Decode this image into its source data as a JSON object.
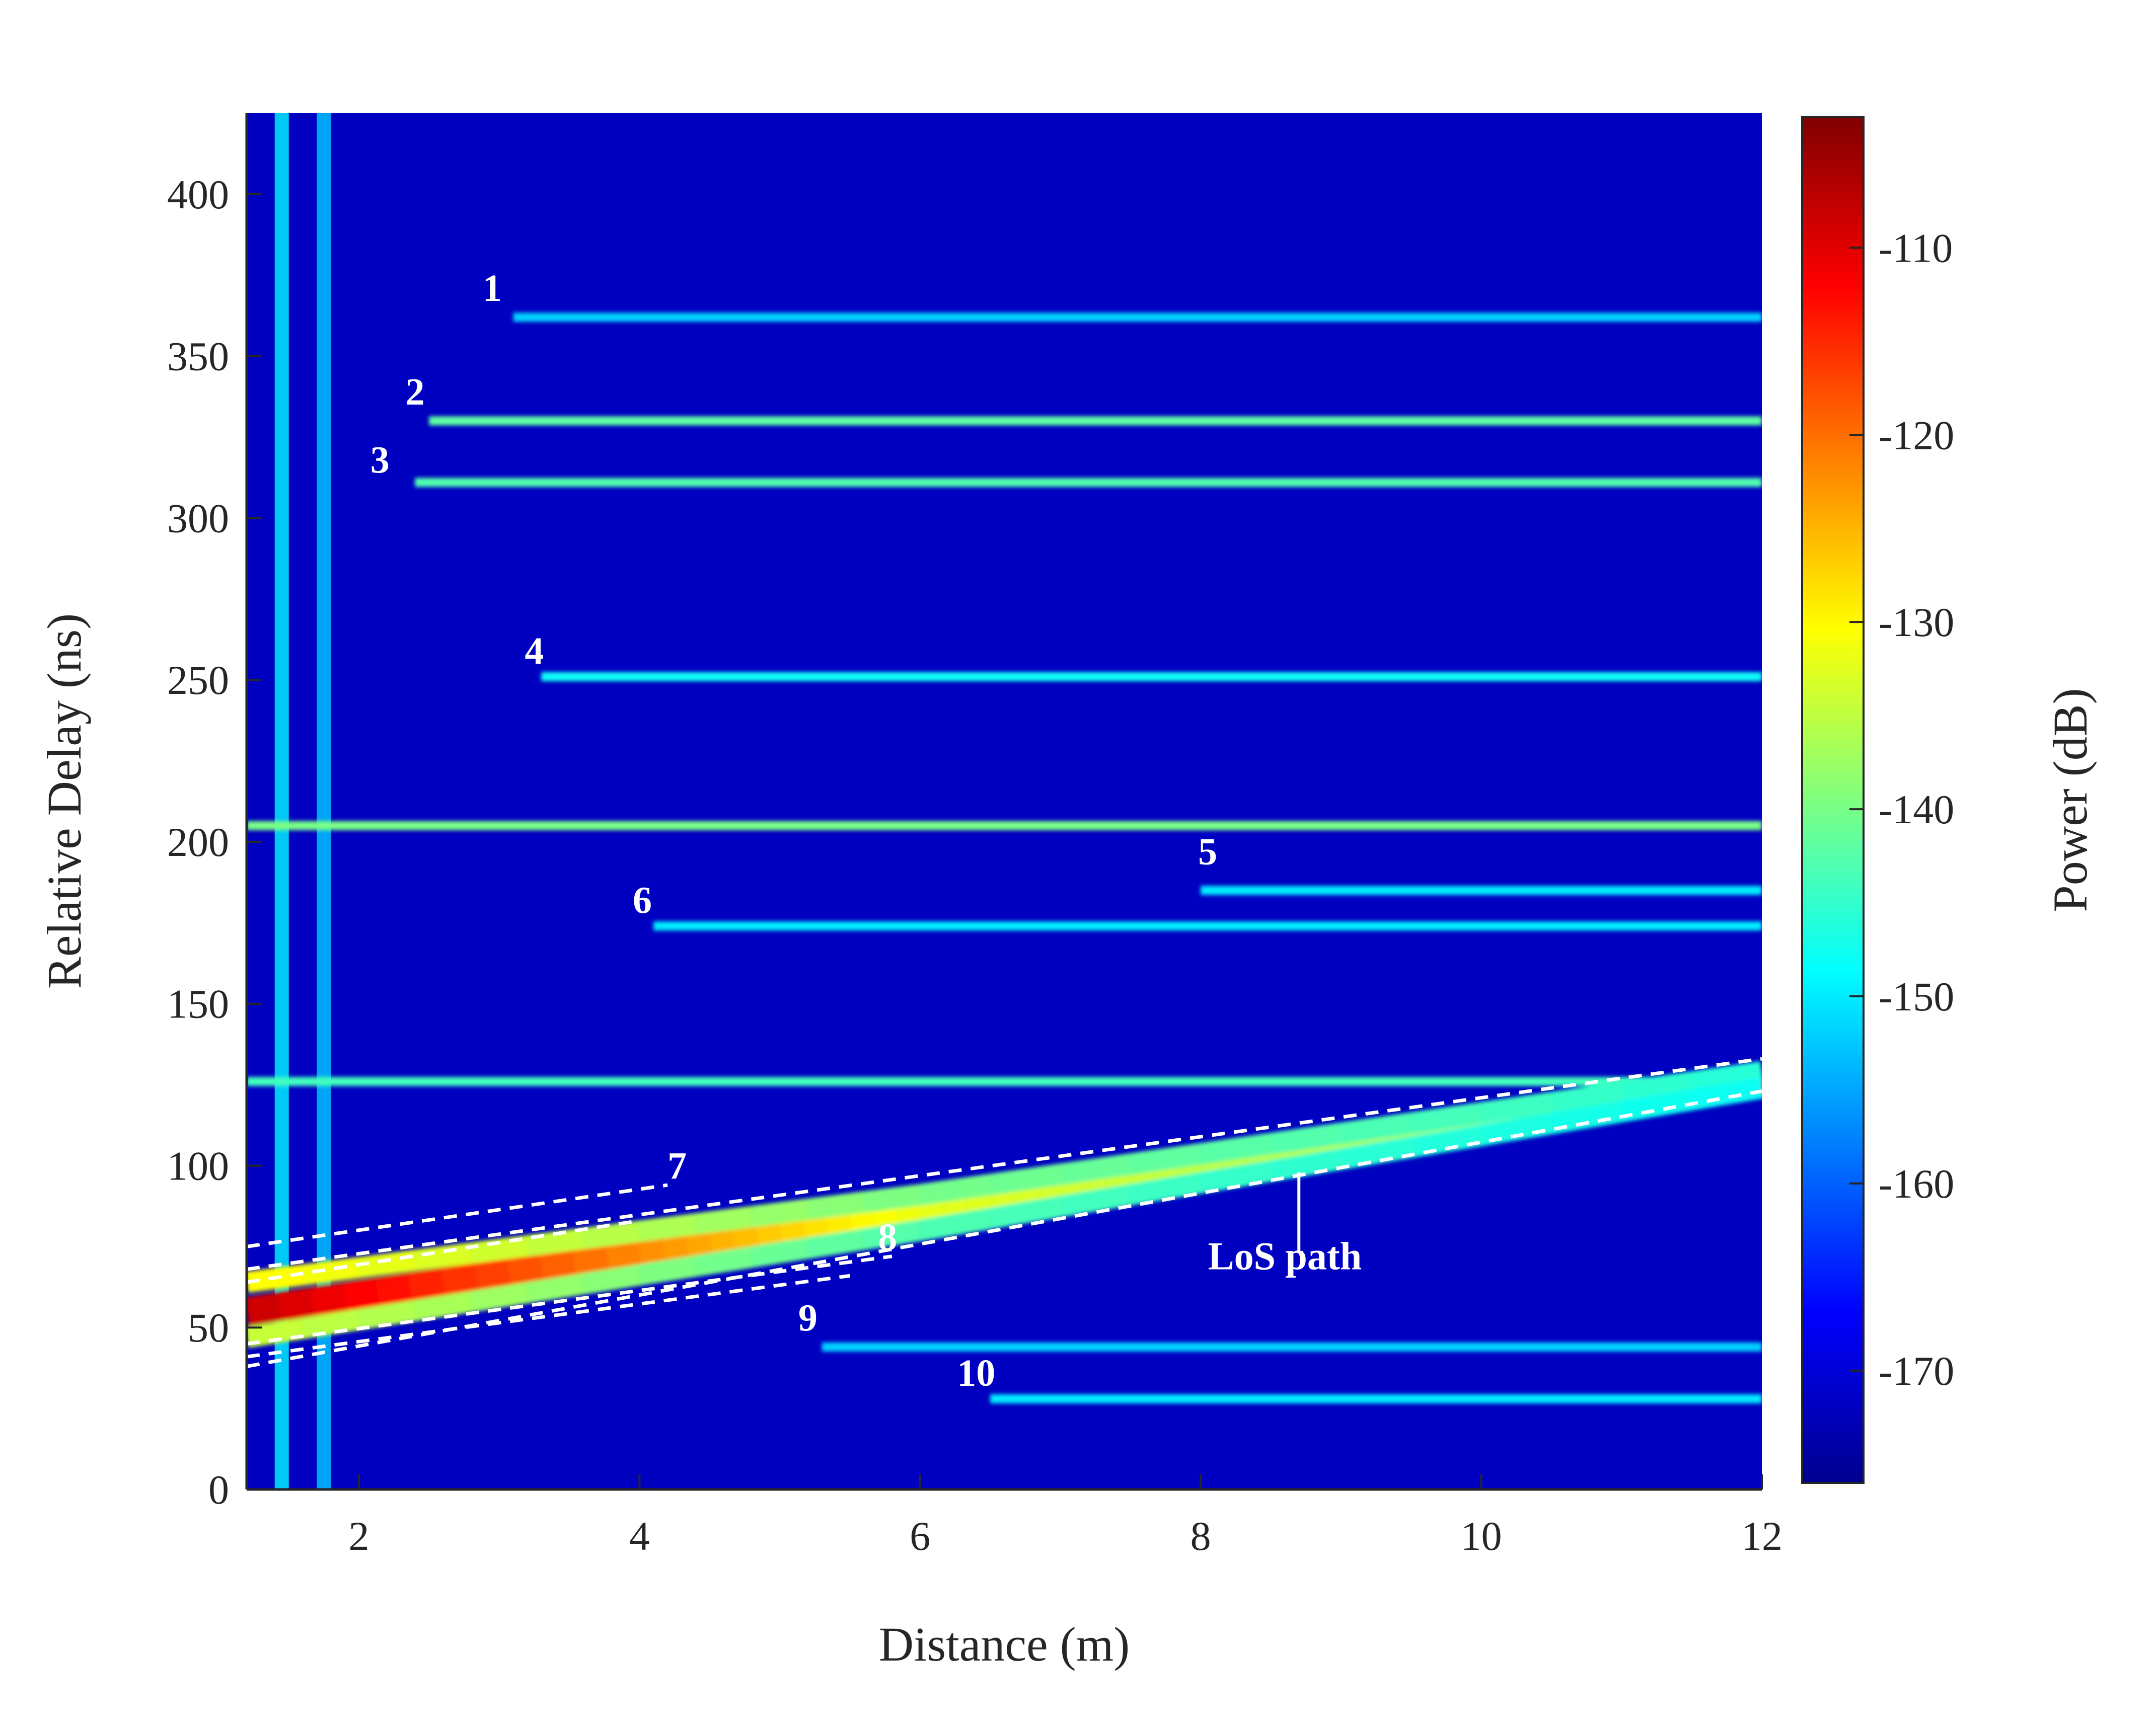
{
  "chart_data": {
    "type": "heatmap",
    "title": "",
    "xlabel": "Distance (m)",
    "ylabel": "Relative Delay (ns)",
    "colorbar_label": "Power (dB)",
    "colormap": "jet",
    "xlim": [
      1.2,
      12
    ],
    "ylim": [
      0,
      425
    ],
    "clim": [
      -176,
      -103
    ],
    "xticks": [
      2,
      4,
      6,
      8,
      10,
      12
    ],
    "yticks": [
      0,
      50,
      100,
      150,
      200,
      250,
      300,
      350,
      400
    ],
    "cticks": [
      -110,
      -120,
      -130,
      -140,
      -150,
      -160,
      -170
    ],
    "background_level_db": -172,
    "vertical_bands": [
      {
        "x": 1.45,
        "level_db": -150
      },
      {
        "x": 1.75,
        "level_db": -153
      }
    ],
    "paths": [
      {
        "label": "1",
        "delay_ns": 362,
        "x_start": 3.1,
        "x_end": 12,
        "level_db": -152,
        "label_x": 2.95,
        "label_y": 367
      },
      {
        "label": "2",
        "delay_ns": 330,
        "x_start": 2.5,
        "x_end": 12,
        "level_db": -142,
        "label_x": 2.4,
        "label_y": 335
      },
      {
        "label": "3",
        "delay_ns": 311,
        "x_start": 2.4,
        "x_end": 12,
        "level_db": -143,
        "label_x": 2.15,
        "label_y": 314
      },
      {
        "label": "4",
        "delay_ns": 251,
        "x_start": 3.3,
        "x_end": 12,
        "level_db": -148,
        "label_x": 3.25,
        "label_y": 255
      },
      {
        "label": "",
        "delay_ns": 205,
        "x_start": 1.2,
        "x_end": 12,
        "level_db": -140
      },
      {
        "label": "5",
        "delay_ns": 185,
        "x_start": 8.0,
        "x_end": 12,
        "level_db": -150,
        "label_x": 8.05,
        "label_y": 193
      },
      {
        "label": "6",
        "delay_ns": 174,
        "x_start": 4.1,
        "x_end": 12,
        "level_db": -150,
        "label_x": 4.02,
        "label_y": 178
      },
      {
        "label": "",
        "delay_ns": 126,
        "x_start": 1.2,
        "x_end": 12,
        "level_db": -144
      },
      {
        "label": "9",
        "delay_ns": 44,
        "x_start": 5.3,
        "x_end": 12,
        "level_db": -152,
        "label_x": 5.2,
        "label_y": 49
      },
      {
        "label": "10",
        "delay_ns": 28,
        "x_start": 6.5,
        "x_end": 12,
        "level_db": -150,
        "label_x": 6.4,
        "label_y": 32
      }
    ],
    "sloped_paths": [
      {
        "name": "LoS",
        "points": [
          [
            1.2,
            55
          ],
          [
            4.0,
            73
          ],
          [
            6.0,
            86
          ],
          [
            8.0,
            99
          ],
          [
            10.0,
            112
          ],
          [
            12.0,
            126
          ]
        ],
        "width_ns": 4,
        "levels_db": [
          -108,
          -122,
          -132,
          -135,
          -137,
          -140
        ]
      },
      {
        "name": "",
        "points": [
          [
            1.2,
            64
          ],
          [
            6.0,
            91
          ],
          [
            12.0,
            129
          ]
        ],
        "width_ns": 3,
        "levels_db": [
          -130,
          -140,
          -146
        ]
      },
      {
        "name": "",
        "points": [
          [
            1.2,
            47
          ],
          [
            6.0,
            80
          ],
          [
            12.0,
            124
          ]
        ],
        "width_ns": 3,
        "levels_db": [
          -134,
          -143,
          -148
        ]
      }
    ],
    "guide_lines": [
      {
        "from": [
          1.2,
          75
        ],
        "to": [
          4.2,
          94
        ]
      },
      {
        "from": [
          1.2,
          68
        ],
        "to": [
          12,
          133
        ]
      },
      {
        "from": [
          1.2,
          45
        ],
        "to": [
          5.8,
          72
        ]
      },
      {
        "from": [
          1.2,
          38
        ],
        "to": [
          12,
          123
        ]
      },
      {
        "from": [
          1.2,
          41
        ],
        "to": [
          5.5,
          66
        ]
      },
      {
        "from": [
          1.2,
          64
        ],
        "to": [
          4.0,
          83
        ]
      }
    ],
    "annotations": [
      {
        "text": "7",
        "x": 4.2,
        "y": 96
      },
      {
        "text": "8",
        "x": 5.7,
        "y": 74
      },
      {
        "text": "LoS path",
        "x": 8.6,
        "y": 68,
        "arrow_from": [
          8.7,
          98
        ],
        "arrow_to": [
          8.7,
          73
        ]
      }
    ]
  }
}
